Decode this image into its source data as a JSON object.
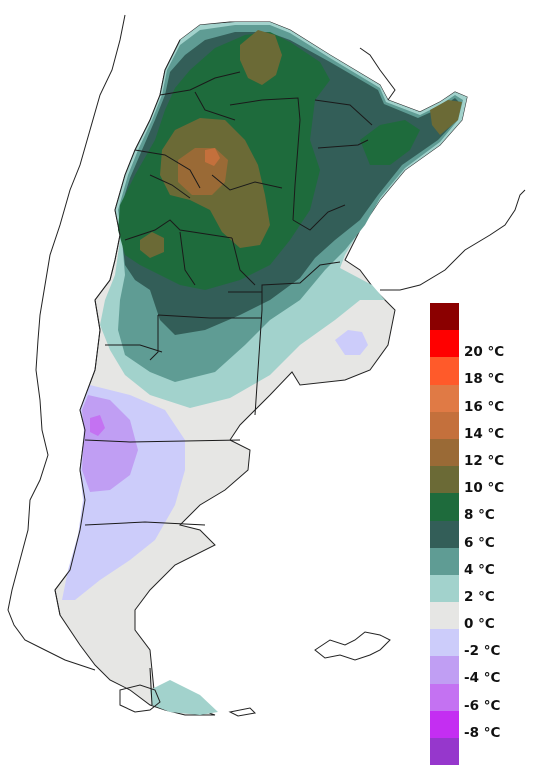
{
  "legend": {
    "bins": [
      {
        "color": "#8b0000"
      },
      {
        "color": "#ff0000",
        "label": "20 °C"
      },
      {
        "color": "#ff5a2a",
        "label": "18 °C"
      },
      {
        "color": "#e07a45",
        "label": "16 °C"
      },
      {
        "color": "#c4703c",
        "label": "14 °C"
      },
      {
        "color": "#9a6a36",
        "label": "12 °C"
      },
      {
        "color": "#6b6a36",
        "label": "10 °C"
      },
      {
        "color": "#1e6b3c",
        "label": "8 °C"
      },
      {
        "color": "#335e58",
        "label": "6 °C"
      },
      {
        "color": "#5f9c94",
        "label": "4 °C"
      },
      {
        "color": "#a2d2cc",
        "label": "2 °C"
      },
      {
        "color": "#e6e6e4",
        "label": "0 °C"
      },
      {
        "color": "#ccccfa",
        "label": "-2 °C"
      },
      {
        "color": "#c09ef3",
        "label": "-4 °C"
      },
      {
        "color": "#c472f2",
        "label": "-6 °C"
      },
      {
        "color": "#c42ef2",
        "label": "-8 °C"
      },
      {
        "color": "#9637cc",
        "label": ""
      }
    ]
  }
}
